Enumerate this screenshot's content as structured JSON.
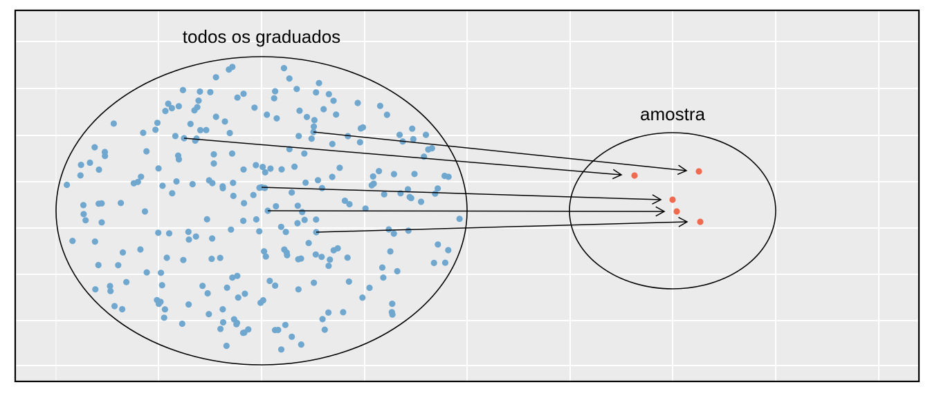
{
  "diagram": {
    "population_label": "todos os graduados",
    "sample_label": "amostra",
    "colors": {
      "panel_background": "#ebebeb",
      "grid": "#ffffff",
      "population_point": "#6fa7cf",
      "sample_point": "#f06a50",
      "outline": "#000000"
    },
    "population_point_count": 250,
    "sample_point_count": 5
  }
}
